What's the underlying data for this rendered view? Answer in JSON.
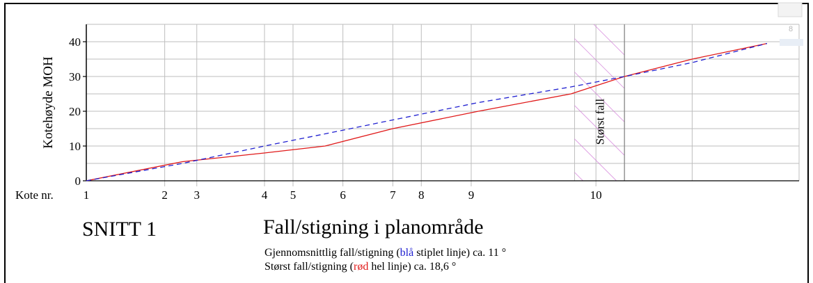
{
  "chart_data": {
    "type": "line",
    "title": "",
    "xlabel": "Kote nr.",
    "ylabel": "Kotehøyde MOH",
    "ylim": [
      0,
      45
    ],
    "yticks": [
      0,
      10,
      20,
      30,
      40
    ],
    "grid": true,
    "x_labels": [
      {
        "label": "1",
        "x": 0
      },
      {
        "label": "2",
        "x": 11
      },
      {
        "label": "3",
        "x": 15.5
      },
      {
        "label": "4",
        "x": 25
      },
      {
        "label": "5",
        "x": 29
      },
      {
        "label": "6",
        "x": 36
      },
      {
        "label": "7",
        "x": 43
      },
      {
        "label": "8",
        "x": 47
      },
      {
        "label": "9",
        "x": 54
      },
      {
        "label": "10",
        "x": 71.5
      }
    ],
    "xlim": [
      0,
      100
    ],
    "shaded_region": {
      "x_start": 68.5,
      "x_end": 75.5,
      "label": "Størst fall"
    },
    "series": [
      {
        "name": "rød hel linje",
        "style": "solid",
        "color": "#e01818",
        "x": [
          0,
          13.5,
          25,
          33.5,
          43,
          55,
          68,
          75.5,
          85,
          95.5
        ],
        "y": [
          0,
          5.5,
          8,
          10,
          15,
          20,
          25,
          30,
          35,
          39.5
        ]
      },
      {
        "name": "blå stiplet linje",
        "style": "dashed",
        "color": "#1f1fd0",
        "x": [
          0,
          13.5,
          25,
          33.5,
          43,
          55,
          68,
          75.5,
          85,
          95.5
        ],
        "y": [
          0,
          5,
          10,
          13.5,
          17.5,
          22.5,
          27,
          30,
          34,
          39.5
        ]
      }
    ]
  },
  "captions": {
    "section_title": "SNITT 1",
    "plan_title": "Fall/stigning i planområde",
    "note_1": {
      "prefix": "Gjennomsnittlig fall/stigning (",
      "color_word": "blå",
      "suffix": " stiplet linje) ca. 11 °"
    },
    "note_2": {
      "prefix": "Størst fall/stigning (",
      "color_word": "rød",
      "suffix": " hel linje) ca. 18,6 °"
    }
  },
  "corner_widget": {
    "label": "8"
  }
}
